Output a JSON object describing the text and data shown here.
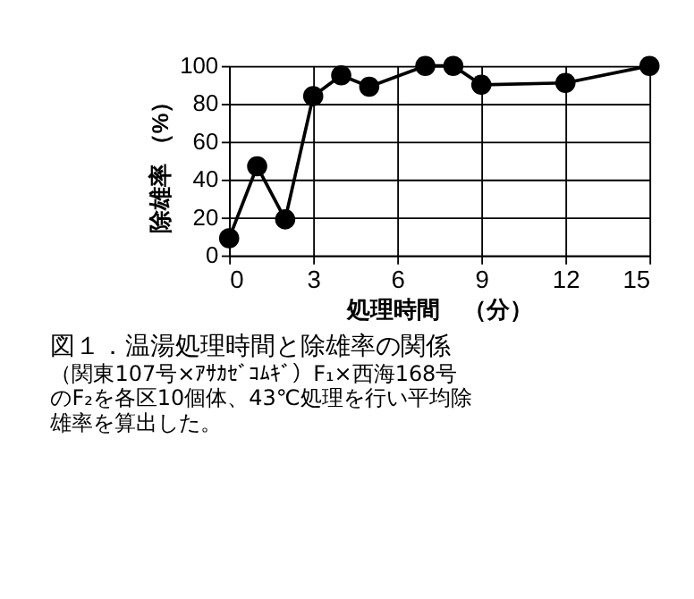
{
  "chart_data": {
    "type": "line",
    "title": "図１．温湯処理時間と除雄率の関係",
    "annotations": [
      "（関東107号×ｱｻｶｾﾞｺﾑｷﾞ）F₁×西海168号",
      "のF₂を各区10個体、43℃処理を行い平均除",
      "雄率を算出した。"
    ],
    "xlabel": "処理時間　（分）",
    "ylabel": "除雄率 （%）",
    "x": [
      0,
      1,
      2,
      3,
      4,
      5,
      7,
      8,
      9,
      12,
      15
    ],
    "series": [
      {
        "color": "#000000",
        "values": [
          9,
          47,
          19,
          84,
          95,
          89,
          100,
          100,
          90,
          91,
          100
        ]
      }
    ],
    "xlim": [
      0,
      15
    ],
    "xticks": [
      0,
      3,
      6,
      9,
      12,
      15
    ],
    "ylim": [
      0,
      100
    ],
    "yticks": [
      0,
      20,
      40,
      60,
      80,
      100
    ],
    "grid": true,
    "marker": "circle",
    "line_style": "solid"
  }
}
